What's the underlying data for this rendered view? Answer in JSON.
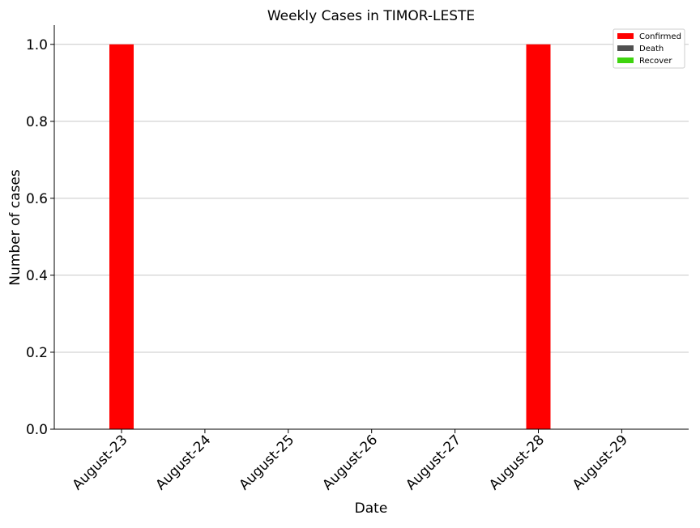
{
  "chart_data": {
    "type": "bar",
    "title": "Weekly Cases in TIMOR-LESTE",
    "xlabel": "Date",
    "ylabel": "Number of cases",
    "categories": [
      "August-23",
      "August-24",
      "August-25",
      "August-26",
      "August-27",
      "August-28",
      "August-29"
    ],
    "series": [
      {
        "name": "Confirmed",
        "color": "#ff0000",
        "values": [
          1,
          0,
          0,
          0,
          0,
          1,
          0
        ]
      },
      {
        "name": "Death",
        "color": "#505050",
        "values": [
          0,
          0,
          0,
          0,
          0,
          0,
          0
        ]
      },
      {
        "name": "Recover",
        "color": "#3fd40f",
        "values": [
          0,
          0,
          0,
          0,
          0,
          0,
          0
        ]
      }
    ],
    "ylim": [
      0,
      1.05
    ],
    "yticks": [
      0.0,
      0.2,
      0.4,
      0.6,
      0.8,
      1.0
    ],
    "ytick_labels": [
      "0.0",
      "0.2",
      "0.4",
      "0.6",
      "0.8",
      "1.0"
    ],
    "grid": "horizontal",
    "legend_position": "top-right"
  }
}
